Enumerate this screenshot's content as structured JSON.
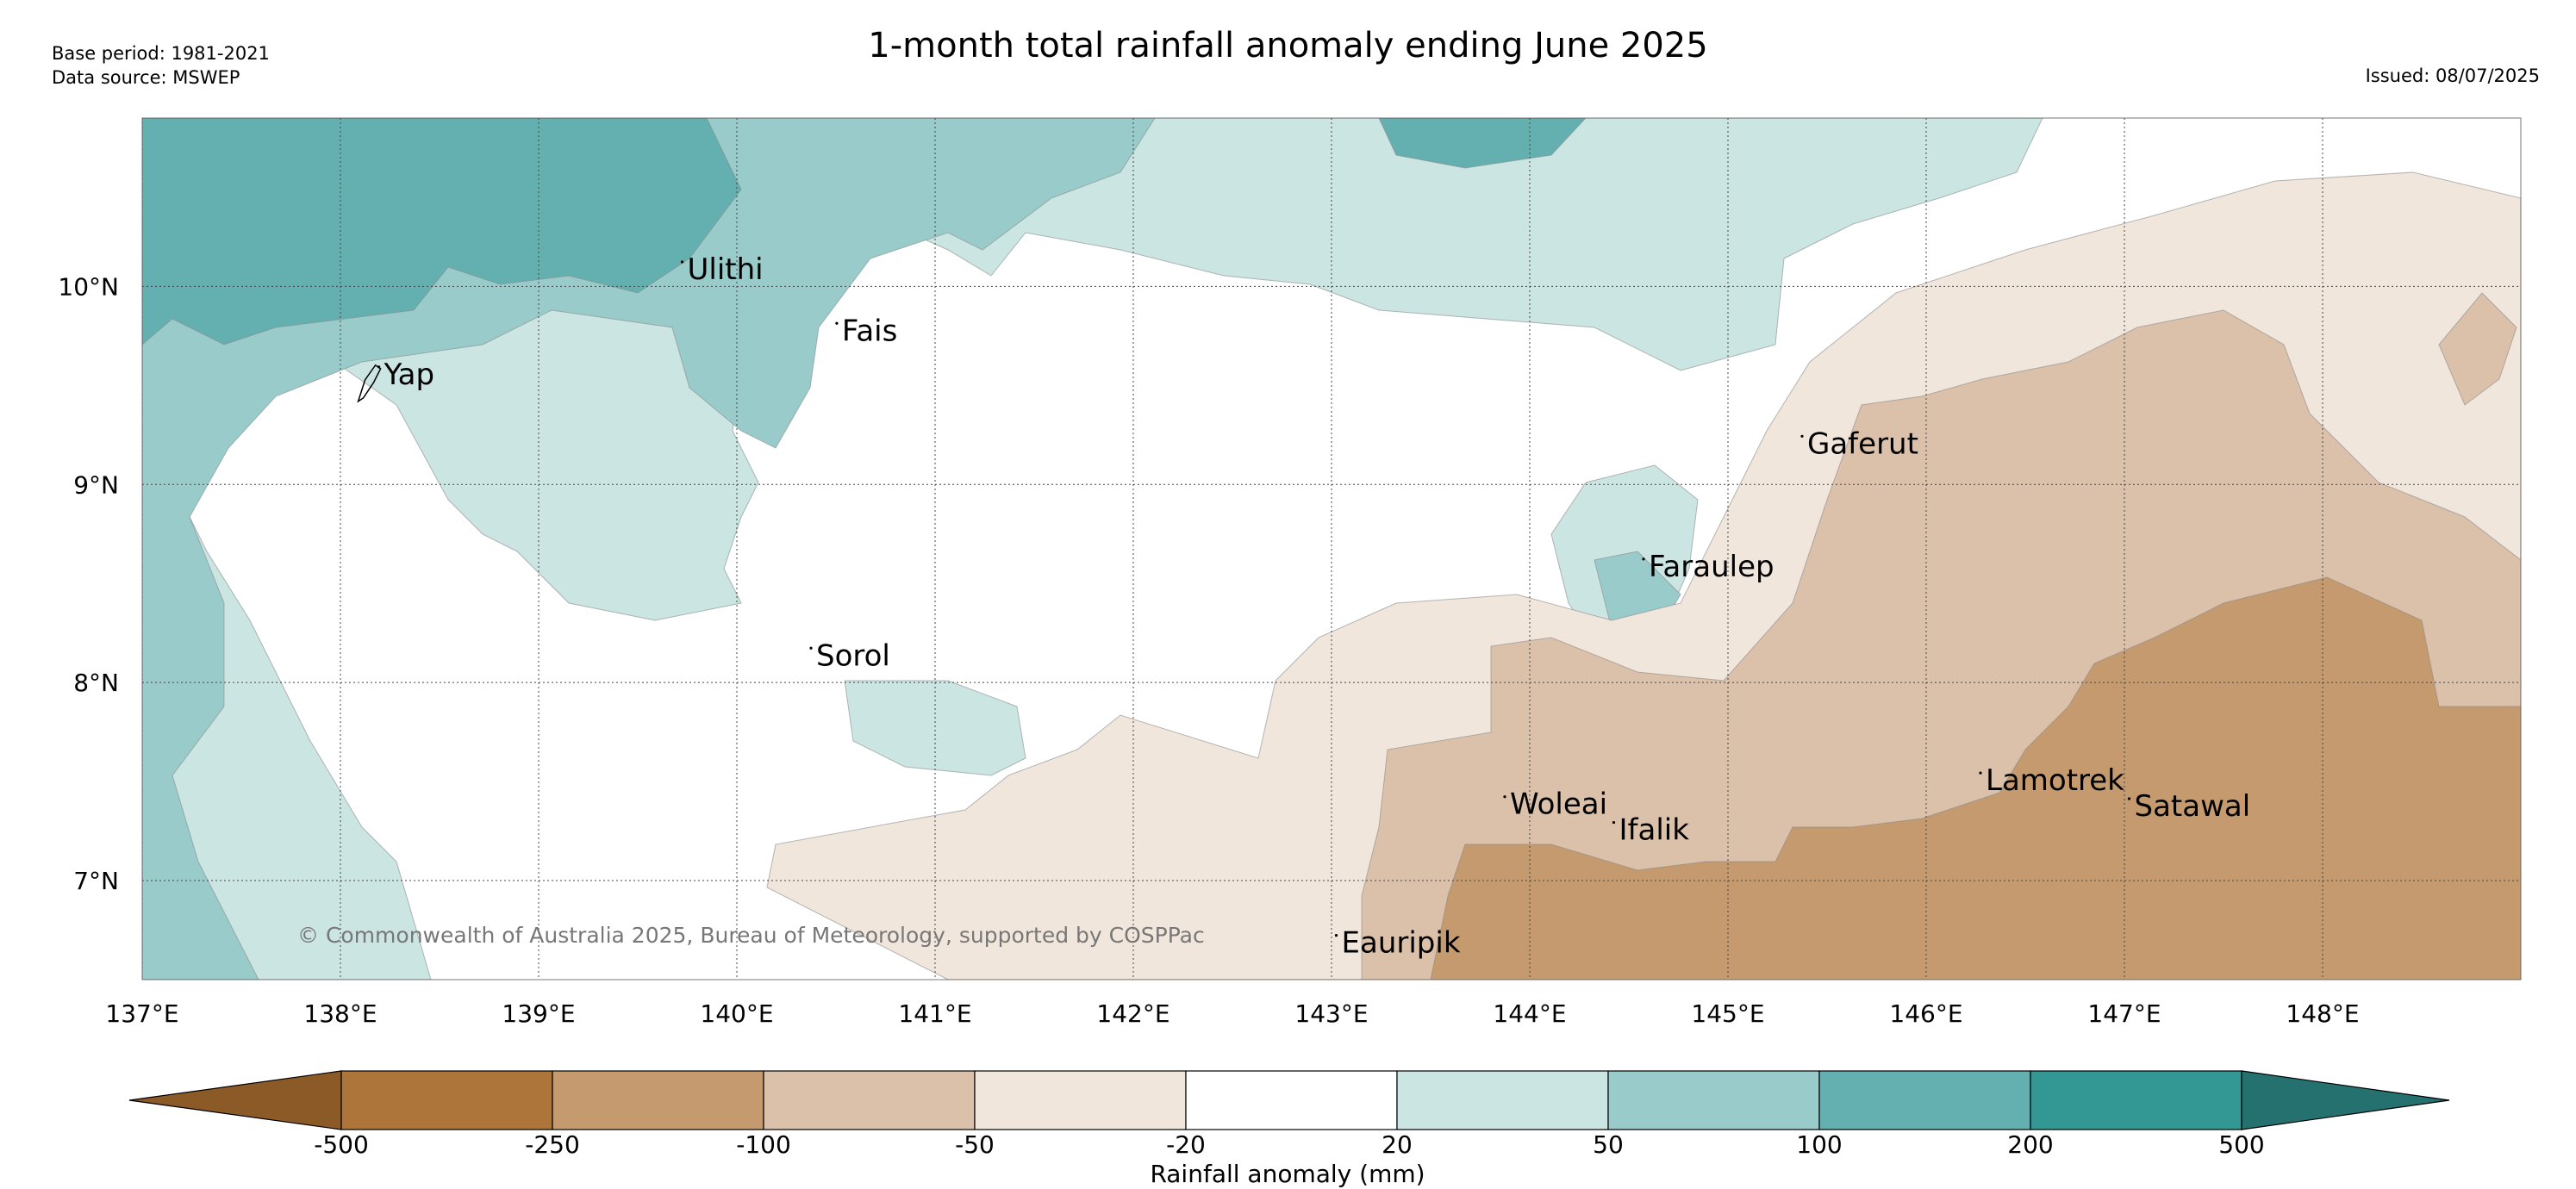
{
  "header": {
    "base_period": "Base period: 1981-2021",
    "data_source": "Data source: MSWEP",
    "title": "1-month total rainfall anomaly ending June 2025",
    "issued": "Issued: 08/07/2025"
  },
  "map": {
    "lon_range": [
      137.0,
      149.0
    ],
    "lat_range": [
      6.5,
      10.85
    ],
    "lon_ticks": [
      137,
      138,
      139,
      140,
      141,
      142,
      143,
      144,
      145,
      146,
      147,
      148
    ],
    "lon_labels": [
      "137°E",
      "138°E",
      "139°E",
      "140°E",
      "141°E",
      "142°E",
      "143°E",
      "144°E",
      "145°E",
      "146°E",
      "147°E",
      "148°E"
    ],
    "lat_ticks": [
      7,
      8,
      9,
      10
    ],
    "lat_labels": [
      "7°N",
      "8°N",
      "9°N",
      "10°N"
    ],
    "copyright": "© Commonwealth of Australia 2025, Bureau of Meteorology, supported by COSPPac",
    "places": [
      {
        "name": "Ulithi",
        "lon": 139.75,
        "lat": 10.08
      },
      {
        "name": "Fais",
        "lon": 140.53,
        "lat": 9.77
      },
      {
        "name": "Yap",
        "lon": 138.22,
        "lat": 9.55
      },
      {
        "name": "Gaferut",
        "lon": 145.4,
        "lat": 9.2
      },
      {
        "name": "Faraulep",
        "lon": 144.6,
        "lat": 8.58
      },
      {
        "name": "Sorol",
        "lon": 140.4,
        "lat": 8.13
      },
      {
        "name": "Woleai",
        "lon": 143.9,
        "lat": 7.38
      },
      {
        "name": "Ifalik",
        "lon": 144.45,
        "lat": 7.25
      },
      {
        "name": "Lamotrek",
        "lon": 146.3,
        "lat": 7.5
      },
      {
        "name": "Satawal",
        "lon": 147.05,
        "lat": 7.37
      },
      {
        "name": "Eauripik",
        "lon": 143.05,
        "lat": 6.68
      }
    ]
  },
  "legend": {
    "title": "Rainfall anomaly (mm)",
    "labels": [
      "-500",
      "-250",
      "-100",
      "-50",
      "-20",
      "20",
      "50",
      "100",
      "200",
      "500"
    ],
    "colors": [
      "#8c5a26",
      "#ad7539",
      "#c49a6e",
      "#dbc1a9",
      "#f1e6dc",
      "#ffffff",
      "#cbe5e3",
      "#99cbcb",
      "#64b0b0",
      "#339894",
      "#25716f"
    ]
  },
  "palette": {
    "wet_strong": "#64b0b0",
    "wet_mid": "#99cbcb",
    "wet_light": "#cbe5e3",
    "neutral": "#ffffff",
    "dry_light": "#f1e6dc",
    "dry_mid": "#dbc1a9",
    "dry_strong": "#c49a6e"
  }
}
